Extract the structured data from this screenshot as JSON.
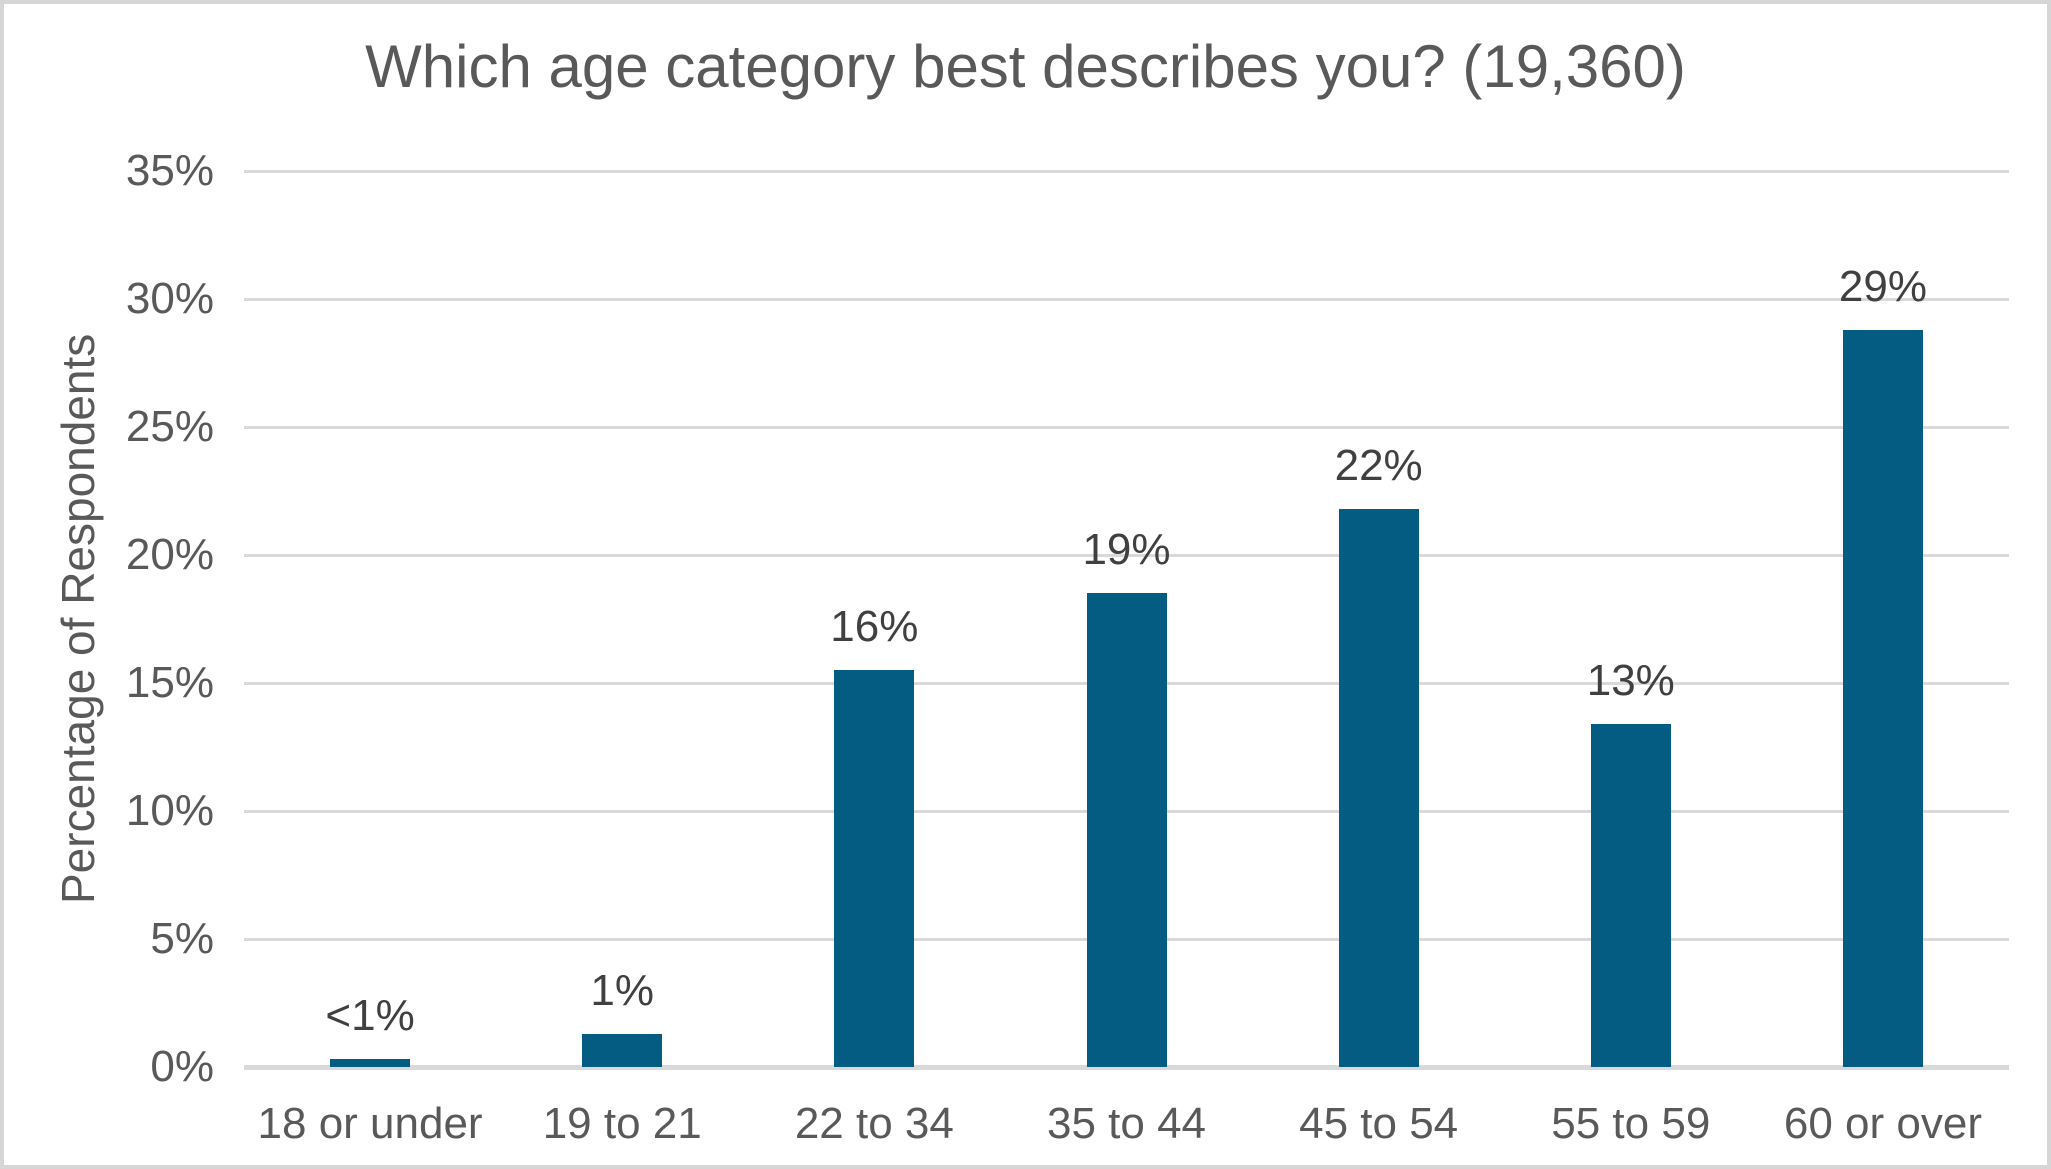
{
  "chart_data": {
    "type": "bar",
    "title": "Which age category best describes you? (19,360)",
    "xlabel": "",
    "ylabel": "Percentage of Respondents",
    "categories": [
      "18 or under",
      "19 to 21",
      "22 to 34",
      "35 to 44",
      "45 to 54",
      "55 to 59",
      "60 or over"
    ],
    "values": [
      0.3,
      1.3,
      15.5,
      18.5,
      21.8,
      13.4,
      28.8
    ],
    "data_labels": [
      "<1%",
      "1%",
      "16%",
      "19%",
      "22%",
      "13%",
      "29%"
    ],
    "y_ticks": [
      {
        "label": "0%",
        "value": 0
      },
      {
        "label": "5%",
        "value": 5
      },
      {
        "label": "10%",
        "value": 10
      },
      {
        "label": "15%",
        "value": 15
      },
      {
        "label": "20%",
        "value": 20
      },
      {
        "label": "25%",
        "value": 25
      },
      {
        "label": "30%",
        "value": 30
      },
      {
        "label": "35%",
        "value": 35
      }
    ],
    "ylim": [
      0,
      35
    ],
    "grid": "horizontal",
    "legend": "none",
    "colors": {
      "bar": "#055C82",
      "gridline": "#D9D9D9",
      "title_text": "#595959",
      "axis_text": "#595959",
      "data_label_text": "#404040",
      "frame_border": "#D6D6D6",
      "background": "#FFFFFF"
    }
  }
}
